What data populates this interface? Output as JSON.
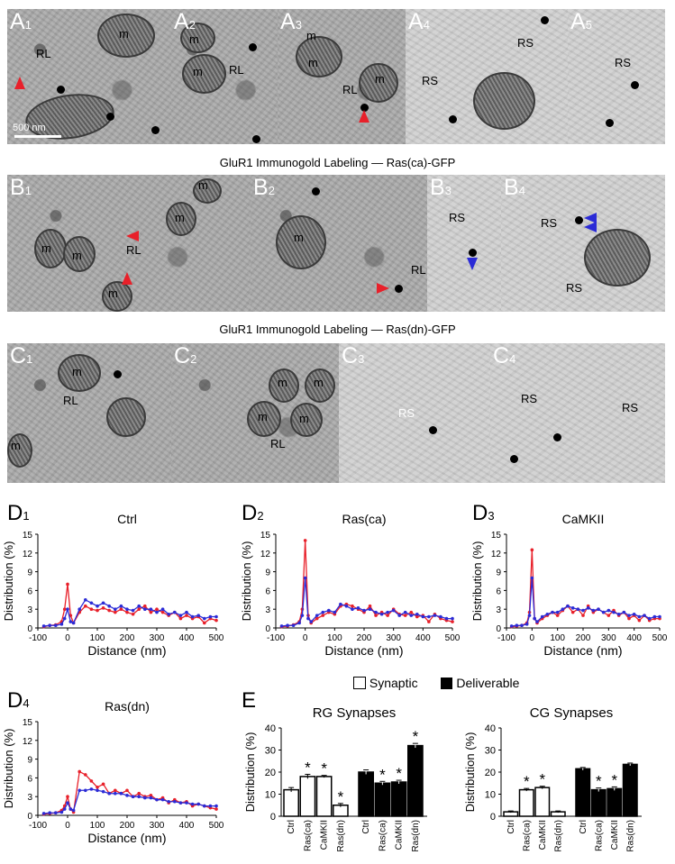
{
  "row_a": {
    "panels": [
      "A1",
      "A2",
      "A3",
      "A4",
      "A5"
    ],
    "scale_bar": "500 nm",
    "labels": {
      "rl": "RL",
      "m": "m",
      "rs": "RS"
    }
  },
  "caption_b": "GluR1 Immunogold Labeling — Ras(ca)-GFP",
  "row_b": {
    "panels": [
      "B1",
      "B2",
      "B3",
      "B4"
    ]
  },
  "caption_c": "GluR1 Immunogold Labeling — Ras(dn)-GFP",
  "row_c": {
    "panels": [
      "C1",
      "C2",
      "C3",
      "C4"
    ]
  },
  "legend": {
    "synaptic": "Synaptic",
    "deliverable": "Deliverable"
  },
  "colors": {
    "red": "#e8202a",
    "blue": "#2b2bd6"
  },
  "chart_data": [
    {
      "panel": "D1",
      "title": "Ctrl",
      "type": "line",
      "xlabel": "Distance (nm)",
      "ylabel": "Distribution (%)",
      "xlim": [
        -100,
        500
      ],
      "ylim": [
        0,
        15
      ],
      "xticks": [
        -100,
        0,
        100,
        200,
        300,
        400,
        500
      ],
      "yticks": [
        0,
        3,
        6,
        9,
        12,
        15
      ],
      "x": [
        -80,
        -60,
        -40,
        -20,
        -10,
        0,
        10,
        20,
        40,
        60,
        80,
        100,
        120,
        140,
        160,
        180,
        200,
        220,
        240,
        260,
        280,
        300,
        320,
        340,
        360,
        380,
        400,
        420,
        440,
        460,
        480,
        500
      ],
      "series": [
        {
          "color": "red",
          "values": [
            0.2,
            0.4,
            0.5,
            1.0,
            3.0,
            7.0,
            2.0,
            0.8,
            2.5,
            3.5,
            3.0,
            2.8,
            3.2,
            2.8,
            2.5,
            3.0,
            2.5,
            2.2,
            3.0,
            3.5,
            2.5,
            3.0,
            2.5,
            2.0,
            2.5,
            1.5,
            2.0,
            1.5,
            1.8,
            0.8,
            1.5,
            1.2
          ]
        },
        {
          "color": "blue",
          "values": [
            0.3,
            0.4,
            0.4,
            0.6,
            1.5,
            3.0,
            1.0,
            0.8,
            3.0,
            4.5,
            4.0,
            3.5,
            4.0,
            3.5,
            3.0,
            3.5,
            3.0,
            2.8,
            3.5,
            3.0,
            3.0,
            2.5,
            3.0,
            2.2,
            2.5,
            2.0,
            2.5,
            1.8,
            2.0,
            1.5,
            1.8,
            1.8
          ]
        }
      ]
    },
    {
      "panel": "D2",
      "title": "Ras(ca)",
      "type": "line",
      "xlabel": "Distance (nm)",
      "ylabel": "Distribution (%)",
      "xlim": [
        -100,
        500
      ],
      "ylim": [
        0,
        15
      ],
      "xticks": [
        -100,
        0,
        100,
        200,
        300,
        400,
        500
      ],
      "yticks": [
        0,
        3,
        6,
        9,
        12,
        15
      ],
      "x": [
        -80,
        -60,
        -40,
        -20,
        -10,
        0,
        10,
        20,
        40,
        60,
        80,
        100,
        120,
        140,
        160,
        180,
        200,
        220,
        240,
        260,
        280,
        300,
        320,
        340,
        360,
        380,
        400,
        420,
        440,
        460,
        480,
        500
      ],
      "series": [
        {
          "color": "red",
          "values": [
            0.2,
            0.3,
            0.5,
            1.0,
            3.0,
            14.0,
            2.0,
            0.8,
            1.5,
            2.0,
            2.5,
            2.2,
            3.5,
            3.8,
            3.5,
            3.0,
            2.5,
            3.5,
            2.0,
            2.5,
            2.0,
            3.0,
            2.2,
            2.0,
            2.5,
            1.8,
            2.0,
            1.0,
            2.2,
            1.5,
            1.2,
            1.0
          ]
        },
        {
          "color": "blue",
          "values": [
            0.3,
            0.4,
            0.4,
            0.8,
            2.0,
            8.0,
            1.5,
            1.0,
            2.0,
            2.5,
            2.8,
            2.5,
            3.8,
            3.5,
            3.0,
            3.2,
            2.8,
            3.0,
            2.5,
            2.2,
            2.5,
            2.8,
            2.0,
            2.5,
            2.0,
            2.2,
            1.8,
            1.8,
            2.0,
            1.8,
            1.5,
            1.5
          ]
        }
      ]
    },
    {
      "panel": "D3",
      "title": "CaMKII",
      "type": "line",
      "xlabel": "Distance (nm)",
      "ylabel": "Distribution (%)",
      "xlim": [
        -100,
        500
      ],
      "ylim": [
        0,
        15
      ],
      "xticks": [
        -100,
        0,
        100,
        200,
        300,
        400,
        500
      ],
      "yticks": [
        0,
        3,
        6,
        9,
        12,
        15
      ],
      "x": [
        -80,
        -60,
        -40,
        -20,
        -10,
        0,
        10,
        20,
        40,
        60,
        80,
        100,
        120,
        140,
        160,
        180,
        200,
        220,
        240,
        260,
        280,
        300,
        320,
        340,
        360,
        380,
        400,
        420,
        440,
        460,
        480,
        500
      ],
      "series": [
        {
          "color": "red",
          "values": [
            0.2,
            0.3,
            0.4,
            0.8,
            2.5,
            12.5,
            1.5,
            0.8,
            1.5,
            2.0,
            2.5,
            2.0,
            2.8,
            3.5,
            2.5,
            3.0,
            2.0,
            3.5,
            2.5,
            3.0,
            2.5,
            2.0,
            2.8,
            2.0,
            2.5,
            1.5,
            2.0,
            1.2,
            2.0,
            1.2,
            1.5,
            1.5
          ]
        },
        {
          "color": "blue",
          "values": [
            0.3,
            0.4,
            0.4,
            0.6,
            2.0,
            8.0,
            1.5,
            1.0,
            1.8,
            2.2,
            2.5,
            2.5,
            3.0,
            3.5,
            3.2,
            3.0,
            2.8,
            3.2,
            2.8,
            3.0,
            2.5,
            2.8,
            2.5,
            2.2,
            2.5,
            2.0,
            2.2,
            1.8,
            2.0,
            1.5,
            1.8,
            1.8
          ]
        }
      ]
    },
    {
      "panel": "D4",
      "title": "Ras(dn)",
      "type": "line",
      "xlabel": "Distance (nm)",
      "ylabel": "Distribution (%)",
      "xlim": [
        -100,
        500
      ],
      "ylim": [
        0,
        15
      ],
      "xticks": [
        -100,
        0,
        100,
        200,
        300,
        400,
        500
      ],
      "yticks": [
        0,
        3,
        6,
        9,
        12,
        15
      ],
      "x": [
        -80,
        -60,
        -40,
        -20,
        -10,
        0,
        10,
        20,
        40,
        60,
        80,
        100,
        120,
        140,
        160,
        180,
        200,
        220,
        240,
        260,
        280,
        300,
        320,
        340,
        360,
        380,
        400,
        420,
        440,
        460,
        480,
        500
      ],
      "series": [
        {
          "color": "red",
          "values": [
            0.2,
            0.3,
            0.4,
            0.8,
            1.5,
            3.0,
            1.0,
            0.5,
            7.0,
            6.5,
            5.5,
            4.5,
            5.0,
            3.5,
            4.0,
            3.5,
            4.0,
            3.0,
            3.5,
            3.0,
            3.2,
            2.5,
            2.8,
            2.0,
            2.5,
            2.0,
            2.2,
            1.5,
            1.8,
            1.5,
            1.2,
            1.0
          ]
        },
        {
          "color": "blue",
          "values": [
            0.3,
            0.4,
            0.4,
            0.5,
            1.0,
            2.0,
            1.0,
            0.8,
            4.0,
            4.0,
            4.2,
            4.0,
            3.8,
            3.5,
            3.5,
            3.5,
            3.2,
            3.0,
            3.0,
            2.8,
            2.8,
            2.5,
            2.5,
            2.2,
            2.2,
            2.0,
            2.0,
            1.8,
            1.8,
            1.5,
            1.5,
            1.5
          ]
        }
      ]
    },
    {
      "panel": "E-RG",
      "title": "RG Synapses",
      "type": "bar",
      "ylabel": "Distribution (%)",
      "ylim": [
        0,
        40
      ],
      "yticks": [
        0,
        10,
        20,
        30,
        40
      ],
      "categories": [
        "Ctrl",
        "Ras(ca)",
        "CaMKII",
        "Ras(dn)",
        "Ctrl",
        "Ras(ca)",
        "CaMKII",
        "Ras(dn)"
      ],
      "groups": [
        "synaptic",
        "synaptic",
        "synaptic",
        "synaptic",
        "deliverable",
        "deliverable",
        "deliverable",
        "deliverable"
      ],
      "values": [
        12,
        18,
        18,
        5,
        20,
        15,
        15.5,
        32
      ],
      "errors": [
        1,
        1,
        0.5,
        0.8,
        1,
        0.8,
        0.8,
        1
      ],
      "significant": [
        false,
        true,
        true,
        true,
        false,
        true,
        true,
        true
      ],
      "marker": "*"
    },
    {
      "panel": "E-CG",
      "title": "CG Synapses",
      "type": "bar",
      "ylabel": "Distribution (%)",
      "ylim": [
        0,
        40
      ],
      "yticks": [
        0,
        10,
        20,
        30,
        40
      ],
      "categories": [
        "Ctrl",
        "Ras(ca)",
        "CaMKII",
        "Ras(dn)",
        "Ctrl",
        "Ras(ca)",
        "CaMKII",
        "Ras(dn)"
      ],
      "groups": [
        "synaptic",
        "synaptic",
        "synaptic",
        "synaptic",
        "deliverable",
        "deliverable",
        "deliverable",
        "deliverable"
      ],
      "values": [
        2,
        12,
        13,
        2,
        21.5,
        12,
        12.5,
        23.5
      ],
      "errors": [
        0.4,
        0.6,
        0.6,
        0.4,
        0.6,
        0.8,
        0.8,
        0.6
      ],
      "significant": [
        false,
        true,
        true,
        false,
        false,
        true,
        true,
        false
      ],
      "marker": "*"
    }
  ],
  "panel_letters": {
    "d1": "D",
    "d1n": "1",
    "d2": "D",
    "d2n": "2",
    "d3": "D",
    "d3n": "3",
    "d4": "D",
    "d4n": "4",
    "e": "E"
  }
}
